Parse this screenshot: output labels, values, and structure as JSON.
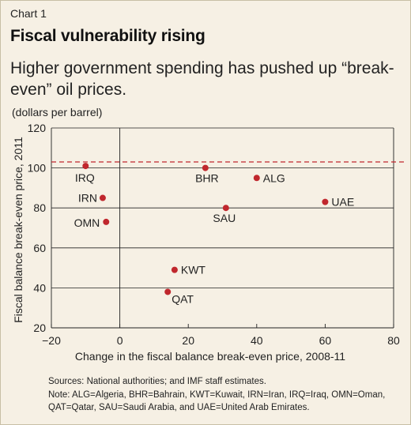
{
  "header": {
    "chart_number": "Chart 1",
    "title": "Fiscal vulnerability rising",
    "subtitle": "Higher government spending has pushed up “break-even” oil prices.",
    "units": "(dollars per barrel)"
  },
  "chart_data": {
    "type": "scatter",
    "xlabel": "Change in the fiscal balance break-even price, 2008-11",
    "ylabel": "Fiscal balance break-even price, 2011",
    "xlim": [
      -20,
      80
    ],
    "ylim": [
      20,
      120
    ],
    "xticks": [
      "−20",
      "0",
      "20",
      "40",
      "60",
      "80"
    ],
    "yticks": [
      "20",
      "40",
      "60",
      "80",
      "100",
      "120"
    ],
    "grid": "horizontal",
    "reference_line": {
      "y": 103,
      "style": "dashed",
      "color": "#c0272d"
    },
    "marker_color": "#c0272d",
    "points": [
      {
        "label": "IRQ",
        "x": -10,
        "y": 101
      },
      {
        "label": "IRN",
        "x": -5,
        "y": 85
      },
      {
        "label": "OMN",
        "x": -4,
        "y": 73
      },
      {
        "label": "BHR",
        "x": 25,
        "y": 100
      },
      {
        "label": "ALG",
        "x": 40,
        "y": 95
      },
      {
        "label": "SAU",
        "x": 31,
        "y": 80
      },
      {
        "label": "UAE",
        "x": 60,
        "y": 83
      },
      {
        "label": "KWT",
        "x": 16,
        "y": 49
      },
      {
        "label": "QAT",
        "x": 14,
        "y": 38
      }
    ]
  },
  "footer": {
    "sources": "Sources: National authorities; and IMF staff estimates.",
    "note_line1": "Note: ALG=Algeria, BHR=Bahrain, KWT=Kuwait, IRN=Iran, IRQ=Iraq, OMN=Oman,",
    "note_line2": "QAT=Qatar, SAU=Saudi Arabia, and UAE=United Arab Emirates."
  }
}
